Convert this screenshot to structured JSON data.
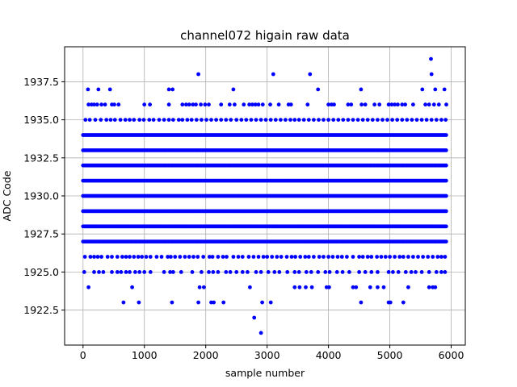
{
  "chart_data": {
    "type": "scatter",
    "title": "channel072 higain raw data",
    "xlabel": "sample number",
    "ylabel": "ADC Code",
    "xlim": [
      -300,
      6230
    ],
    "ylim": [
      1920.2,
      1939.8
    ],
    "x_ticks": [
      0,
      1000,
      2000,
      3000,
      4000,
      5000,
      6000
    ],
    "x_tick_labels": [
      "0",
      "1000",
      "2000",
      "3000",
      "4000",
      "5000",
      "6000"
    ],
    "y_ticks": [
      1922.5,
      1925.0,
      1927.5,
      1930.0,
      1932.5,
      1935.0,
      1937.5
    ],
    "y_tick_labels": [
      "1922.5",
      "1925.0",
      "1927.5",
      "1930.0",
      "1932.5",
      "1935.0",
      "1937.5"
    ],
    "grid": true,
    "color": "#0000ff",
    "sample_range": [
      0,
      5930
    ],
    "dense_levels": [
      1927,
      1928,
      1929,
      1930,
      1931,
      1932,
      1933,
      1934
    ],
    "sparse_levels": [
      {
        "y": 1926,
        "x": [
          30,
          120,
          180,
          240,
          300,
          400,
          470,
          560,
          640,
          700,
          760,
          830,
          900,
          960,
          1030,
          1100,
          1200,
          1280,
          1380,
          1430,
          1500,
          1580,
          1660,
          1730,
          1800,
          1870,
          1960,
          2060,
          2110,
          2200,
          2280,
          2340,
          2450,
          2530,
          2600,
          2700,
          2780,
          2860,
          2940,
          3000,
          3080,
          3160,
          3230,
          3320,
          3400,
          3460,
          3540,
          3620,
          3680,
          3760,
          3850,
          3920,
          4000,
          4070,
          4150,
          4220,
          4300,
          4400,
          4500,
          4560,
          4640,
          4700,
          4790,
          4860,
          4930,
          5000,
          5080,
          5160,
          5220,
          5300,
          5380,
          5460,
          5540,
          5620,
          5700,
          5780,
          5840,
          5900
        ]
      },
      {
        "y": 1935,
        "x": [
          40,
          110,
          200,
          290,
          380,
          450,
          520,
          610,
          690,
          760,
          830,
          920,
          990,
          1080,
          1150,
          1240,
          1320,
          1400,
          1470,
          1560,
          1620,
          1700,
          1770,
          1850,
          1930,
          2010,
          2090,
          2170,
          2250,
          2330,
          2410,
          2500,
          2580,
          2660,
          2740,
          2820,
          2900,
          2980,
          3060,
          3140,
          3220,
          3300,
          3380,
          3450,
          3520,
          3600,
          3680,
          3760,
          3840,
          3920,
          4000,
          4080,
          4160,
          4240,
          4320,
          4400,
          4480,
          4560,
          4640,
          4720,
          4800,
          4880,
          4960,
          5040,
          5120,
          5200,
          5280,
          5360,
          5440,
          5520,
          5600,
          5680,
          5760,
          5840,
          5910
        ]
      },
      {
        "y": 1925,
        "x": [
          20,
          180,
          260,
          330,
          470,
          560,
          620,
          700,
          760,
          850,
          920,
          1000,
          1100,
          1320,
          1420,
          1470,
          1600,
          1780,
          1930,
          2050,
          2120,
          2200,
          2330,
          2400,
          2500,
          2600,
          2680,
          2820,
          2900,
          3020,
          3120,
          3200,
          3330,
          3450,
          3520,
          3640,
          3720,
          3830,
          3950,
          4020,
          4140,
          4230,
          4340,
          4500,
          4600,
          4700,
          4800,
          4980,
          5050,
          5140,
          5260,
          5350,
          5420,
          5520,
          5640,
          5760,
          5840,
          5900
        ]
      },
      {
        "y": 1936,
        "x": [
          90,
          140,
          180,
          230,
          300,
          360,
          470,
          510,
          580,
          1000,
          1090,
          1400,
          1620,
          1680,
          1730,
          1790,
          1840,
          1920,
          1990,
          2050,
          2250,
          2390,
          2470,
          2620,
          2710,
          2760,
          2810,
          2860,
          2930,
          3050,
          3190,
          3350,
          3390,
          3660,
          4000,
          4050,
          4090,
          4320,
          4370,
          4540,
          4600,
          4750,
          4830,
          4980,
          5030,
          5080,
          5130,
          5200,
          5250,
          5380,
          5580,
          5640,
          5720,
          5800,
          5920
        ]
      },
      {
        "y": 1924,
        "x": [
          90,
          800,
          1900,
          1970,
          2720,
          3450,
          3530,
          3630,
          3730,
          3970,
          4010,
          4400,
          4450,
          4680,
          4800,
          4900,
          5300,
          5640,
          5700,
          5740
        ]
      },
      {
        "y": 1937,
        "x": [
          80,
          250,
          440,
          1400,
          1460,
          2450,
          3830,
          4530,
          5530,
          5740,
          5890
        ]
      },
      {
        "y": 1923,
        "x": [
          660,
          910,
          1450,
          1880,
          2090,
          2130,
          2290,
          2920,
          3060,
          4530,
          4980,
          5010,
          5220
        ]
      },
      {
        "y": 1938,
        "x": [
          1880,
          3100,
          3700,
          5680
        ]
      },
      {
        "y": 1939,
        "x": [
          5670
        ]
      },
      {
        "y": 1922,
        "x": [
          2790
        ]
      },
      {
        "y": 1921,
        "x": [
          2900
        ]
      }
    ]
  }
}
